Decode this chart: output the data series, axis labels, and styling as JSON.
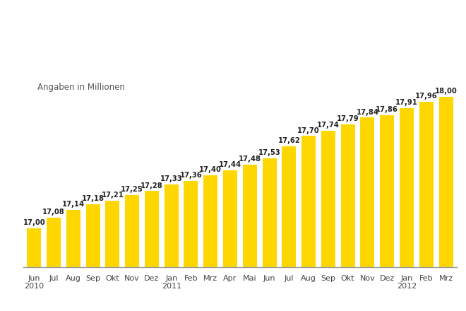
{
  "categories": [
    "Jun\n2010",
    "Jul",
    "Aug",
    "Sep",
    "Okt",
    "Nov",
    "Dez",
    "Jan\n2011",
    "Feb",
    "Mrz",
    "Apr",
    "Mai",
    "Jun",
    "Jul",
    "Aug",
    "Sep",
    "Okt",
    "Nov",
    "Dez",
    "Jan\n2012",
    "Feb",
    "Mrz"
  ],
  "values": [
    17.0,
    17.08,
    17.14,
    17.18,
    17.21,
    17.25,
    17.28,
    17.33,
    17.36,
    17.4,
    17.44,
    17.48,
    17.53,
    17.62,
    17.7,
    17.74,
    17.79,
    17.84,
    17.86,
    17.91,
    17.96,
    18.0
  ],
  "labels": [
    "17,00",
    "17,08",
    "17,14",
    "17,18",
    "17,21",
    "17,25",
    "17,28",
    "17,33",
    "17,36",
    "17,40",
    "17,44",
    "17,48",
    "17,53",
    "17,62",
    "17,70",
    "17,74",
    "17,79",
    "17,84",
    "17,86",
    "17,91",
    "17,96",
    "18,00"
  ],
  "bar_color": "#FFD700",
  "background_color": "#FFFFFF",
  "annotation_fontsize": 7.2,
  "annotation_color": "#222222",
  "xlabel_color": "#444444",
  "tick_label_fontsize": 8.0,
  "subtitle": "Angaben in Millionen",
  "subtitle_fontsize": 8.5,
  "subtitle_color": "#555555",
  "ylim_min": 16.7,
  "ylim_max": 18.45
}
